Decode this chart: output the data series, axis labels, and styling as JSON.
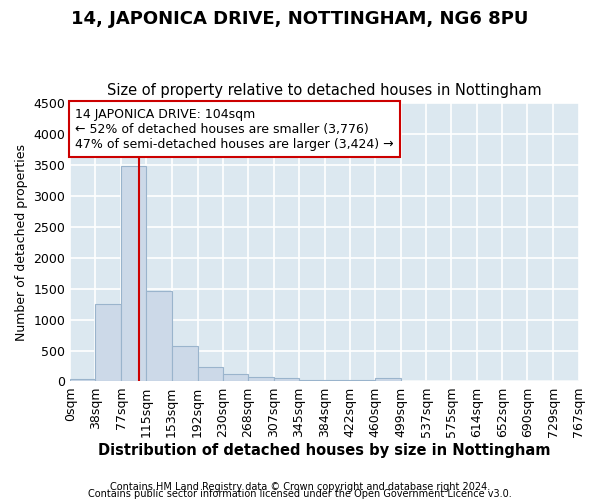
{
  "title": "14, JAPONICA DRIVE, NOTTINGHAM, NG6 8PU",
  "subtitle": "Size of property relative to detached houses in Nottingham",
  "xlabel": "Distribution of detached houses by size in Nottingham",
  "ylabel": "Number of detached properties",
  "footer_line1": "Contains HM Land Registry data © Crown copyright and database right 2024.",
  "footer_line2": "Contains public sector information licensed under the Open Government Licence v3.0.",
  "bin_edges": [
    0,
    38,
    77,
    115,
    153,
    192,
    230,
    268,
    307,
    345,
    384,
    422,
    460,
    499,
    537,
    575,
    614,
    652,
    690,
    729,
    767
  ],
  "bar_heights": [
    40,
    1260,
    3490,
    1460,
    570,
    240,
    115,
    80,
    55,
    30,
    25,
    20,
    50,
    5,
    0,
    0,
    0,
    0,
    0,
    0
  ],
  "bar_color": "#ccd9e8",
  "bar_edgecolor": "#9ab4cc",
  "bar_linewidth": 0.8,
  "vline_x": 104,
  "vline_color": "#cc0000",
  "ylim": [
    0,
    4500
  ],
  "yticks": [
    0,
    500,
    1000,
    1500,
    2000,
    2500,
    3000,
    3500,
    4000,
    4500
  ],
  "annotation_line1": "14 JAPONICA DRIVE: 104sqm",
  "annotation_line2": "← 52% of detached houses are smaller (3,776)",
  "annotation_line3": "47% of semi-detached houses are larger (3,424) →",
  "annotation_box_color": "#ffffff",
  "annotation_box_edgecolor": "#cc0000",
  "annotation_fontsize": 9,
  "title_fontsize": 13,
  "subtitle_fontsize": 10.5,
  "xlabel_fontsize": 10.5,
  "ylabel_fontsize": 9,
  "tick_fontsize": 9,
  "footer_fontsize": 7,
  "background_color": "#ffffff",
  "axes_background": "#dce8f0",
  "grid_color": "#ffffff",
  "grid_linewidth": 1.2
}
